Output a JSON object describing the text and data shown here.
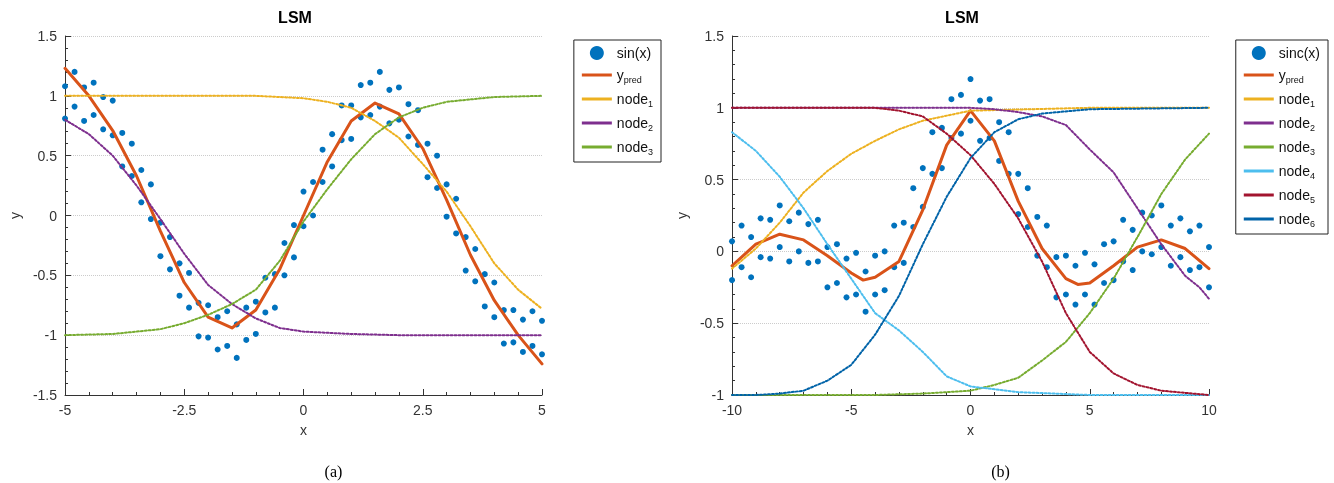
{
  "chart_data": [
    {
      "type": "line",
      "title": "LSM",
      "xlabel": "x",
      "ylabel": "y",
      "annotations": [
        "(a)"
      ],
      "xlim": [
        -5,
        5
      ],
      "xticks": [
        -5,
        -2.5,
        0,
        2.5,
        5
      ],
      "ylim": [
        -1.5,
        1.5
      ],
      "yticks": [
        -1.5,
        -1,
        -0.5,
        0,
        0.5,
        1,
        1.5
      ],
      "grid": "y",
      "legend": "top right",
      "series": [
        {
          "name": "sin(x)",
          "type": "scatter",
          "marker": "circle",
          "color": "#0072bd",
          "x": [
            -5,
            -5,
            -4.8,
            -4.8,
            -4.6,
            -4.6,
            -4.4,
            -4.4,
            -4.2,
            -4.2,
            -4,
            -4,
            -3.8,
            -3.8,
            -3.6,
            -3.6,
            -3.4,
            -3.4,
            -3.2,
            -3.2,
            -3,
            -3,
            -2.8,
            -2.8,
            -2.6,
            -2.6,
            -2.4,
            -2.4,
            -2.2,
            -2.2,
            -2,
            -2,
            -1.8,
            -1.8,
            -1.6,
            -1.6,
            -1.4,
            -1.4,
            -1.2,
            -1.2,
            -1,
            -1,
            -0.8,
            -0.8,
            -0.6,
            -0.6,
            -0.4,
            -0.4,
            -0.2,
            -0.2,
            0,
            0,
            0.2,
            0.2,
            0.4,
            0.4,
            0.6,
            0.6,
            0.8,
            0.8,
            1,
            1,
            1.2,
            1.2,
            1.4,
            1.4,
            1.6,
            1.6,
            1.8,
            1.8,
            2,
            2,
            2.2,
            2.2,
            2.4,
            2.4,
            2.6,
            2.6,
            2.8,
            2.8,
            3,
            3,
            3.2,
            3.2,
            3.4,
            3.4,
            3.6,
            3.6,
            3.8,
            3.8,
            4,
            4,
            4.2,
            4.2,
            4.4,
            4.4,
            4.6,
            4.6,
            4.8,
            4.8,
            5,
            5
          ],
          "values": [
            1.08,
            0.81,
            1.2,
            0.91,
            1.07,
            0.79,
            1.11,
            0.84,
            0.99,
            0.72,
            0.96,
            0.67,
            0.69,
            0.41,
            0.6,
            0.33,
            0.38,
            0.11,
            0.26,
            -0.03,
            -0.06,
            -0.34,
            -0.18,
            -0.45,
            -0.4,
            -0.67,
            -0.48,
            -0.77,
            -0.73,
            -1.01,
            -0.75,
            -1.02,
            -0.85,
            -1.12,
            -0.8,
            -1.09,
            -0.91,
            -1.19,
            -0.77,
            -1.04,
            -0.72,
            -0.99,
            -0.52,
            -0.81,
            -0.49,
            -0.77,
            -0.23,
            -0.5,
            -0.08,
            -0.35,
            0.2,
            -0.09,
            0.28,
            0,
            0.55,
            0.28,
            0.68,
            0.41,
            0.92,
            0.63,
            0.92,
            0.64,
            1.09,
            0.82,
            1.11,
            0.84,
            1.2,
            0.91,
            1.05,
            0.77,
            1.07,
            0.8,
            0.93,
            0.66,
            0.88,
            0.59,
            0.6,
            0.32,
            0.5,
            0.23,
            0.26,
            -0.01,
            0.14,
            -0.15,
            -0.18,
            -0.46,
            -0.28,
            -0.55,
            -0.49,
            -0.76,
            -0.56,
            -0.85,
            -0.79,
            -1.07,
            -0.79,
            -1.06,
            -0.87,
            -1.14,
            -0.8,
            -1.09,
            -0.88,
            -1.16
          ]
        },
        {
          "name": "y$_{pred}$",
          "line_style": "solid",
          "color": "#d95319",
          "x": [
            -5,
            -4.5,
            -4,
            -3.5,
            -3,
            -2.5,
            -2,
            -1.5,
            -1,
            -0.5,
            0,
            0.5,
            1,
            1.5,
            2,
            2.5,
            3,
            3.5,
            4,
            4.5,
            5
          ],
          "values": [
            1.23,
            1.0,
            0.71,
            0.33,
            -0.13,
            -0.56,
            -0.85,
            -0.94,
            -0.79,
            -0.45,
            0,
            0.45,
            0.79,
            0.94,
            0.85,
            0.56,
            0.13,
            -0.33,
            -0.71,
            -1.0,
            -1.24
          ]
        },
        {
          "name": "node$_{1}$",
          "line_style": "dotted",
          "color": "#edb120",
          "x": [
            -5,
            -3,
            -1,
            0,
            0.5,
            1,
            1.5,
            2,
            2.5,
            3,
            3.5,
            4,
            4.5,
            5
          ],
          "values": [
            1,
            1,
            1,
            0.98,
            0.95,
            0.9,
            0.79,
            0.65,
            0.43,
            0.2,
            -0.09,
            -0.4,
            -0.62,
            -0.78
          ]
        },
        {
          "name": "node$_{2}$",
          "line_style": "dotted",
          "color": "#7e2f8e",
          "x": [
            -5,
            -4.5,
            -4,
            -3.5,
            -3,
            -2.5,
            -2,
            -1.5,
            -1,
            -0.5,
            0,
            1,
            2,
            5
          ],
          "values": [
            0.8,
            0.68,
            0.5,
            0.25,
            -0.03,
            -0.32,
            -0.58,
            -0.74,
            -0.86,
            -0.94,
            -0.97,
            -0.99,
            -1,
            -1
          ]
        },
        {
          "name": "node$_{3}$",
          "line_style": "dotted",
          "color": "#77ac30",
          "x": [
            -5,
            -4,
            -3,
            -2.5,
            -2,
            -1.5,
            -1,
            -0.5,
            0,
            0.5,
            1,
            1.5,
            2,
            2.5,
            3,
            4,
            5
          ],
          "values": [
            -1,
            -0.99,
            -0.95,
            -0.9,
            -0.83,
            -0.74,
            -0.62,
            -0.38,
            -0.05,
            0.22,
            0.47,
            0.68,
            0.82,
            0.9,
            0.95,
            0.99,
            1
          ]
        }
      ]
    },
    {
      "type": "line",
      "title": "LSM",
      "xlabel": "x",
      "ylabel": "y",
      "annotations": [
        "(b)"
      ],
      "xlim": [
        -10,
        10
      ],
      "xticks": [
        -10,
        -5,
        0,
        5,
        10
      ],
      "ylim": [
        -1,
        1.5
      ],
      "yticks": [
        -1,
        -0.5,
        0,
        0.5,
        1,
        1.5
      ],
      "grid": "y",
      "legend": "top right",
      "series": [
        {
          "name": "sinc(x)",
          "type": "scatter",
          "marker": "circle",
          "color": "#0072bd",
          "x": [
            -10,
            -10,
            -9.6,
            -9.6,
            -9.2,
            -9.2,
            -8.8,
            -8.8,
            -8.4,
            -8.4,
            -8,
            -8,
            -7.6,
            -7.6,
            -7.2,
            -7.2,
            -6.8,
            -6.8,
            -6.4,
            -6.4,
            -6,
            -6,
            -5.6,
            -5.6,
            -5.2,
            -5.2,
            -4.8,
            -4.8,
            -4.4,
            -4.4,
            -4,
            -4,
            -3.6,
            -3.6,
            -3.2,
            -3.2,
            -2.8,
            -2.8,
            -2.4,
            -2.4,
            -2,
            -2,
            -1.6,
            -1.6,
            -1.2,
            -1.2,
            -0.8,
            -0.8,
            -0.4,
            -0.4,
            0,
            0,
            0.4,
            0.4,
            0.8,
            0.8,
            1.2,
            1.2,
            1.6,
            1.6,
            2,
            2,
            2.4,
            2.4,
            2.8,
            2.8,
            3.2,
            3.2,
            3.6,
            3.6,
            4,
            4,
            4.4,
            4.4,
            4.8,
            4.8,
            5.2,
            5.2,
            5.6,
            5.6,
            6,
            6,
            6.4,
            6.4,
            6.8,
            6.8,
            7.2,
            7.2,
            7.6,
            7.6,
            8,
            8,
            8.4,
            8.4,
            8.8,
            8.8,
            9.2,
            9.2,
            9.6,
            9.6,
            10,
            10
          ],
          "values": [
            0.07,
            -0.2,
            0.18,
            -0.11,
            0.1,
            -0.18,
            0.23,
            -0.04,
            0.22,
            -0.05,
            0.32,
            0.03,
            0.21,
            -0.07,
            0.27,
            0,
            0.19,
            -0.08,
            0.22,
            -0.07,
            0.03,
            -0.25,
            0.05,
            -0.22,
            -0.05,
            -0.32,
            -0.01,
            -0.3,
            -0.14,
            -0.42,
            -0.03,
            -0.3,
            0,
            -0.27,
            0.18,
            -0.11,
            0.2,
            -0.08,
            0.44,
            0.17,
            0.58,
            0.31,
            0.83,
            0.54,
            0.86,
            0.58,
            1.06,
            0.79,
            1.09,
            0.82,
            1.2,
            0.91,
            1.05,
            0.77,
            1.06,
            0.79,
            0.9,
            0.63,
            0.83,
            0.54,
            0.54,
            0.26,
            0.44,
            0.17,
            0.24,
            -0.03,
            0.18,
            -0.11,
            -0.04,
            -0.32,
            -0.03,
            -0.3,
            -0.1,
            -0.37,
            -0.01,
            -0.3,
            -0.09,
            -0.37,
            0.05,
            -0.22,
            0.07,
            -0.2,
            0.22,
            -0.07,
            0.15,
            -0.13,
            0.27,
            0,
            0.25,
            -0.02,
            0.32,
            0.03,
            0.18,
            -0.1,
            0.23,
            -0.04,
            0.14,
            -0.13,
            0.18,
            -0.11,
            0.03,
            -0.25
          ]
        },
        {
          "name": "y$_{pred}$",
          "line_style": "solid",
          "color": "#d95319",
          "x": [
            -10,
            -9,
            -8,
            -7,
            -6,
            -5,
            -4.5,
            -4,
            -3,
            -2,
            -1,
            0,
            1,
            2,
            3,
            4,
            4.5,
            5,
            6,
            7,
            8,
            9,
            10
          ],
          "values": [
            -0.1,
            0.05,
            0.12,
            0.08,
            -0.03,
            -0.15,
            -0.2,
            -0.18,
            -0.07,
            0.29,
            0.74,
            0.98,
            0.77,
            0.35,
            0.02,
            -0.19,
            -0.23,
            -0.22,
            -0.1,
            0.03,
            0.08,
            0.02,
            -0.12
          ]
        },
        {
          "name": "node$_{1}$",
          "line_style": "dotted",
          "color": "#edb120",
          "x": [
            -10,
            -9,
            -8,
            -7,
            -6,
            -5,
            -4,
            -3,
            -2,
            0,
            5,
            10
          ],
          "values": [
            -0.12,
            0.02,
            0.2,
            0.41,
            0.56,
            0.68,
            0.77,
            0.85,
            0.91,
            0.98,
            1,
            1
          ]
        },
        {
          "name": "node$_{2}$",
          "line_style": "dotted",
          "color": "#7e2f8e",
          "x": [
            -10,
            0,
            1,
            2,
            3,
            4,
            5,
            6,
            7,
            8,
            9,
            9.6,
            10
          ],
          "values": [
            1,
            1,
            0.99,
            0.97,
            0.94,
            0.88,
            0.71,
            0.55,
            0.3,
            0.05,
            -0.17,
            -0.25,
            -0.33
          ]
        },
        {
          "name": "node$_{3}$",
          "line_style": "dotted",
          "color": "#77ac30",
          "x": [
            -10,
            -4,
            -2,
            0,
            1,
            2,
            3,
            4,
            5,
            6,
            7,
            8,
            9,
            10
          ],
          "values": [
            -1,
            -1,
            -0.99,
            -0.97,
            -0.93,
            -0.88,
            -0.76,
            -0.63,
            -0.43,
            -0.19,
            0.1,
            0.4,
            0.64,
            0.82
          ]
        },
        {
          "name": "node$_{4}$",
          "line_style": "dotted",
          "color": "#4dbeee",
          "x": [
            -10,
            -9,
            -8,
            -7,
            -6,
            -5,
            -4,
            -3,
            -2,
            -1,
            0,
            2,
            5,
            10
          ],
          "values": [
            0.83,
            0.7,
            0.52,
            0.3,
            0.05,
            -0.19,
            -0.43,
            -0.55,
            -0.7,
            -0.87,
            -0.94,
            -0.98,
            -1,
            -1
          ]
        },
        {
          "name": "node$_{5}$",
          "line_style": "dotted",
          "color": "#a2142f",
          "x": [
            -10,
            -4,
            -3,
            -2,
            -1,
            0,
            1,
            2,
            3,
            4,
            5,
            6,
            7,
            8,
            10
          ],
          "values": [
            1,
            1,
            0.98,
            0.94,
            0.82,
            0.67,
            0.47,
            0.23,
            -0.07,
            -0.43,
            -0.7,
            -0.85,
            -0.93,
            -0.97,
            -1
          ]
        },
        {
          "name": "node$_{6}$",
          "line_style": "dotted",
          "color": "#0063a8",
          "x": [
            -10,
            -9,
            -8,
            -7,
            -6,
            -5,
            -4,
            -3,
            -2,
            -1,
            0,
            1,
            2,
            3,
            5,
            10
          ],
          "values": [
            -1,
            -1,
            -0.99,
            -0.97,
            -0.9,
            -0.79,
            -0.58,
            -0.31,
            0.05,
            0.38,
            0.65,
            0.83,
            0.92,
            0.96,
            0.99,
            1
          ]
        }
      ]
    }
  ]
}
